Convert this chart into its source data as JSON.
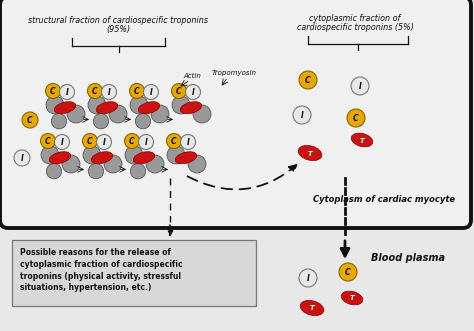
{
  "title1_line1": "structural fraction of cardiospecific troponins",
  "title1_line2": "(95%)",
  "title2_line1": "cytoplasmic fraction of",
  "title2_line2": "cardiospecific troponins (5%)",
  "label_actin": "Actin",
  "label_tropomyosin": "Tropomyosin",
  "label_cytoplasm": "Cytoplasm of cardiac myocyte",
  "label_blood": "Blood plasma",
  "text_box": "Possible reasons for the release of\ncytoplasmic fraction of cardiospecific\ntroponins (physical activity, stressful\nsituations, hypertension, etc.)",
  "bg_color": "#e8e8e8",
  "cell_bg": "#f0f0f0",
  "gray_ball": "#999999",
  "red_ell": "#cc1111",
  "yellow_c": "#e8a800",
  "white_i": "#e8e8e8",
  "border_col": "#111111"
}
